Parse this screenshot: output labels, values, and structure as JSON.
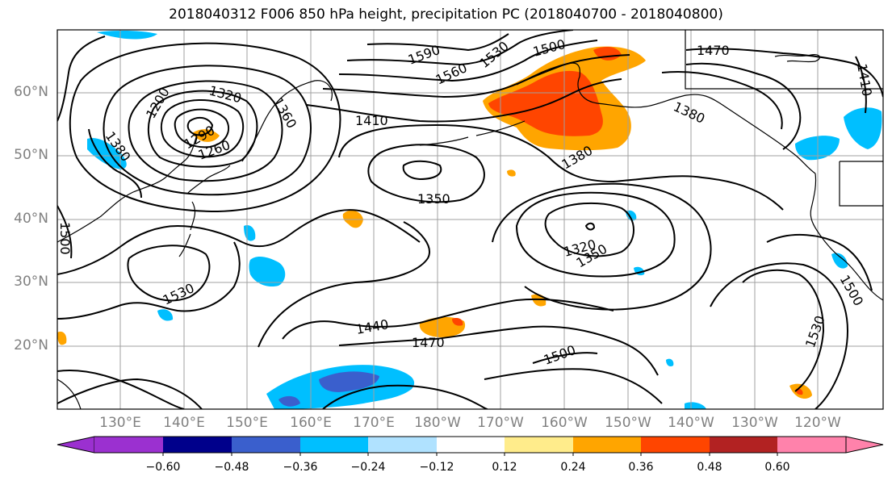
{
  "title": "2018040312 F006 850 hPa height, precipitation PC (2018040700 - 2018040800)",
  "lat_labels": [
    "60°N",
    "50°N",
    "40°N",
    "30°N",
    "20°N"
  ],
  "lon_labels": [
    "130°E",
    "140°E",
    "150°E",
    "160°E",
    "170°E",
    "180°W",
    "170°W",
    "160°W",
    "150°W",
    "140°W",
    "130°W",
    "120°W"
  ],
  "contour_labels": [
    "1590",
    "1560",
    "1530",
    "1500",
    "1470",
    "1410",
    "1410",
    "1380",
    "1380",
    "1320",
    "1290",
    "1260",
    "1200",
    "1360",
    "1380",
    "1350",
    "1320",
    "1350",
    "1500",
    "1530",
    "1440",
    "1470",
    "1500",
    "1530",
    "1500"
  ],
  "colorbar": {
    "colors": [
      "#9b30d0",
      "#00008b",
      "#3a5fcd",
      "#00bfff",
      "#b0e2ff",
      "#ffffff",
      "#ffec8b",
      "#ffa500",
      "#ff4500",
      "#b22222",
      "#ff82ab"
    ],
    "tick_labels": [
      "−0.60",
      "−0.48",
      "−0.36",
      "−0.24",
      "−0.12",
      "0.12",
      "0.24",
      "0.36",
      "0.48",
      "0.60"
    ]
  }
}
